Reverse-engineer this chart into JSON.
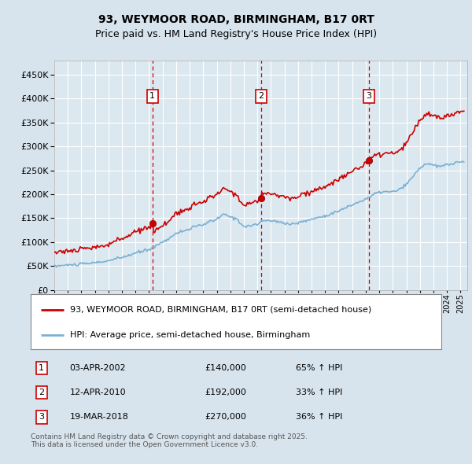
{
  "title1": "93, WEYMOOR ROAD, BIRMINGHAM, B17 0RT",
  "title2": "Price paid vs. HM Land Registry's House Price Index (HPI)",
  "sale_label1": "93, WEYMOOR ROAD, BIRMINGHAM, B17 0RT (semi-detached house)",
  "sale_label2": "HPI: Average price, semi-detached house, Birmingham",
  "transactions": [
    {
      "num": 1,
      "date": "03-APR-2002",
      "price": 140000,
      "pct": "65%",
      "dir": "↑"
    },
    {
      "num": 2,
      "date": "12-APR-2010",
      "price": 192000,
      "pct": "33%",
      "dir": "↑"
    },
    {
      "num": 3,
      "date": "19-MAR-2018",
      "price": 270000,
      "pct": "36%",
      "dir": "↑"
    }
  ],
  "transaction_dates_decimal": [
    2002.25,
    2010.28,
    2018.22
  ],
  "transaction_prices": [
    140000,
    192000,
    270000
  ],
  "footer": "Contains HM Land Registry data © Crown copyright and database right 2025.\nThis data is licensed under the Open Government Licence v3.0.",
  "line_color_property": "#cc0000",
  "line_color_hpi": "#7ab0d4",
  "dashed_line_color": "#cc0000",
  "bg_color": "#d8e4ed",
  "plot_bg_color": "#dce8f0",
  "grid_color": "#ffffff",
  "ylim": [
    0,
    480000
  ],
  "yticks": [
    0,
    50000,
    100000,
    150000,
    200000,
    250000,
    300000,
    350000,
    400000,
    450000
  ]
}
